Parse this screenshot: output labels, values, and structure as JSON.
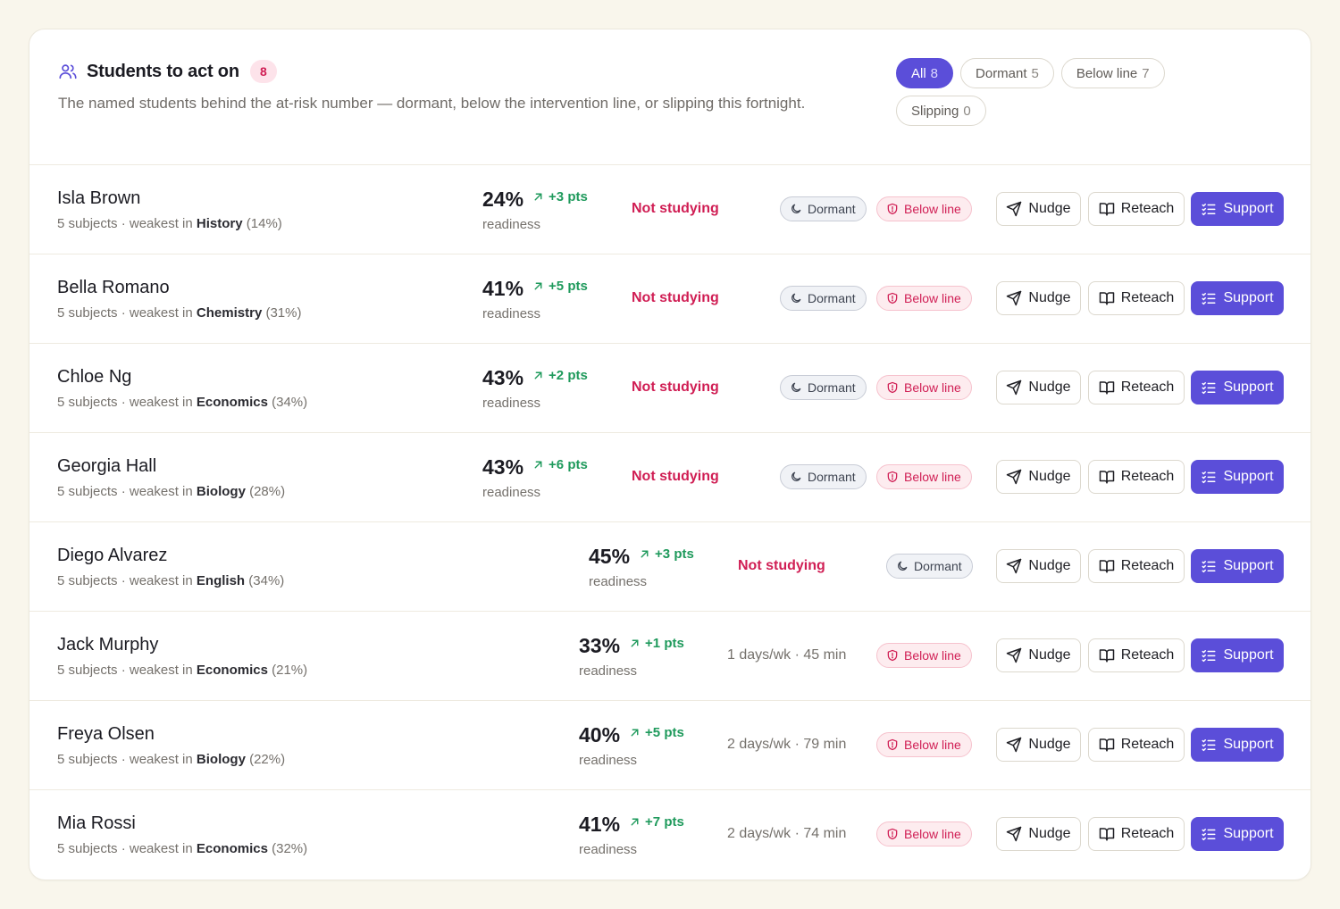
{
  "header": {
    "title": "Students to act on",
    "count": "8",
    "subtitle": "The named students behind the at-risk number — dormant, below the intervention line, or slipping this fortnight."
  },
  "filters": [
    {
      "label": "All",
      "count": "8",
      "active": true
    },
    {
      "label": "Dormant",
      "count": "5",
      "active": false
    },
    {
      "label": "Below line",
      "count": "7",
      "active": false
    },
    {
      "label": "Slipping",
      "count": "0",
      "active": false
    }
  ],
  "labels": {
    "readiness": "readiness",
    "subjects_prefix": "5 subjects · weakest in",
    "dormant_tag": "Dormant",
    "below_tag": "Below line",
    "nudge": "Nudge",
    "reteach": "Reteach",
    "support": "Support"
  },
  "colors": {
    "accent": "#5b4ed9",
    "warn": "#d01e54",
    "positive": "#1f9a5c"
  },
  "students": [
    {
      "name": "Isla Brown",
      "weakest": "History",
      "weakest_pct": "(14%)",
      "readiness": "24%",
      "delta": "+3 pts",
      "activity": "Not studying",
      "dormant": true,
      "below": true
    },
    {
      "name": "Bella Romano",
      "weakest": "Chemistry",
      "weakest_pct": "(31%)",
      "readiness": "41%",
      "delta": "+5 pts",
      "activity": "Not studying",
      "dormant": true,
      "below": true
    },
    {
      "name": "Chloe Ng",
      "weakest": "Economics",
      "weakest_pct": "(34%)",
      "readiness": "43%",
      "delta": "+2 pts",
      "activity": "Not studying",
      "dormant": true,
      "below": true
    },
    {
      "name": "Georgia Hall",
      "weakest": "Biology",
      "weakest_pct": "(28%)",
      "readiness": "43%",
      "delta": "+6 pts",
      "activity": "Not studying",
      "dormant": true,
      "below": true
    },
    {
      "name": "Diego Alvarez",
      "weakest": "English",
      "weakest_pct": "(34%)",
      "readiness": "45%",
      "delta": "+3 pts",
      "activity": "Not studying",
      "dormant": true,
      "below": false
    },
    {
      "name": "Jack Murphy",
      "weakest": "Economics",
      "weakest_pct": "(21%)",
      "readiness": "33%",
      "delta": "+1 pts",
      "activity": "1 days/wk · 45 min",
      "dormant": false,
      "below": true
    },
    {
      "name": "Freya Olsen",
      "weakest": "Biology",
      "weakest_pct": "(22%)",
      "readiness": "40%",
      "delta": "+5 pts",
      "activity": "2 days/wk · 79 min",
      "dormant": false,
      "below": true
    },
    {
      "name": "Mia Rossi",
      "weakest": "Economics",
      "weakest_pct": "(32%)",
      "readiness": "41%",
      "delta": "+7 pts",
      "activity": "2 days/wk · 74 min",
      "dormant": false,
      "below": true
    }
  ]
}
